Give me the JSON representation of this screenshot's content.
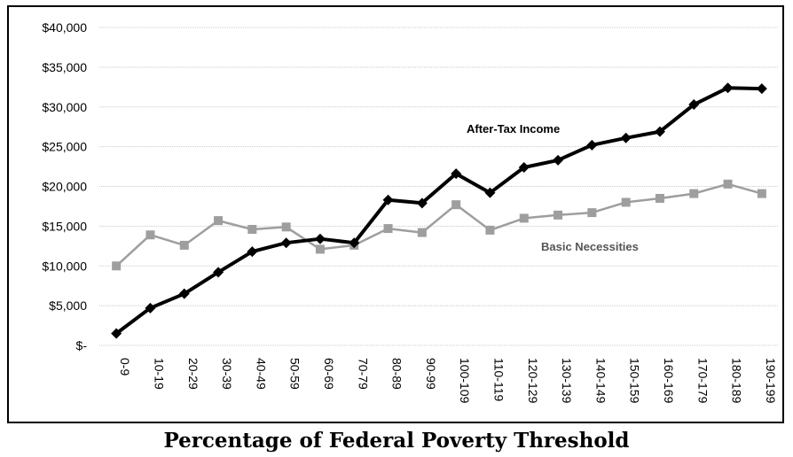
{
  "chart_data": {
    "type": "line",
    "xlabel": "Percentage of Federal Poverty Threshold",
    "ylabel": "",
    "categories": [
      "0-9",
      "10-19",
      "20-29",
      "30-39",
      "40-49",
      "50-59",
      "60-69",
      "70-79",
      "80-89",
      "90-99",
      "100-109",
      "110-119",
      "120-129",
      "130-139",
      "140-149",
      "150-159",
      "160-169",
      "170-179",
      "180-189",
      "190-199"
    ],
    "ylim": [
      0,
      40000
    ],
    "yticks": [
      0,
      5000,
      10000,
      15000,
      20000,
      25000,
      30000,
      35000,
      40000
    ],
    "ytick_labels": [
      "$-",
      "$5,000",
      "$10,000",
      "$15,000",
      "$20,000",
      "$25,000",
      "$30,000",
      "$35,000",
      "$40,000"
    ],
    "grid": true,
    "series": [
      {
        "name": "After-Tax Income",
        "color": "#000000",
        "marker": "diamond",
        "values": [
          1500,
          4700,
          6500,
          9200,
          11800,
          12900,
          13400,
          12900,
          18300,
          17900,
          21600,
          19200,
          22400,
          23300,
          25200,
          26100,
          26900,
          30300,
          32400,
          32300
        ]
      },
      {
        "name": "Basic Necessities",
        "color": "#9e9e9e",
        "marker": "square",
        "values": [
          10000,
          13900,
          12600,
          15700,
          14600,
          14900,
          12100,
          12600,
          14700,
          14200,
          17700,
          14500,
          16000,
          16400,
          16700,
          18000,
          18500,
          19100,
          20300,
          19100
        ]
      }
    ]
  }
}
